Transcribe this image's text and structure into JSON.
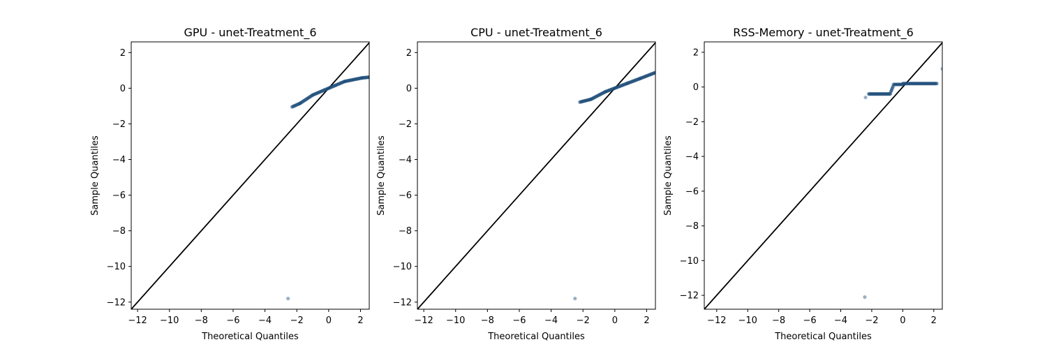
{
  "chart_data": [
    {
      "type": "scatter",
      "title": "GPU - unet-Treatment_6",
      "xlabel": "Theoretical Quantiles",
      "ylabel": "Sample Quantiles",
      "xlim": [
        -12.4,
        2.55
      ],
      "ylim": [
        -12.4,
        2.6
      ],
      "xticks": [
        -12,
        -10,
        -8,
        -6,
        -4,
        -2,
        0,
        2
      ],
      "yticks": [
        -12,
        -10,
        -8,
        -6,
        -4,
        -2,
        0,
        2
      ],
      "reference_line": "45-degree",
      "marker_color": "#1f4e79",
      "line_color": "#000000",
      "outliers": [
        [
          -2.55,
          -11.8
        ]
      ],
      "segments": [
        {
          "x_start": -2.3,
          "x_end": -1.8,
          "y_start": -1.05,
          "y_end": -0.85
        },
        {
          "x_start": -1.8,
          "x_end": -1.0,
          "y_start": -0.85,
          "y_end": -0.38
        },
        {
          "x_start": -1.0,
          "x_end": 1.0,
          "y_start": -0.38,
          "y_end": 0.38
        },
        {
          "x_start": 1.0,
          "x_end": 2.1,
          "y_start": 0.38,
          "y_end": 0.58
        },
        {
          "x_start": 2.1,
          "x_end": 2.55,
          "y_start": 0.58,
          "y_end": 0.62
        }
      ]
    },
    {
      "type": "scatter",
      "title": "CPU - unet-Treatment_6",
      "xlabel": "Theoretical Quantiles",
      "ylabel": "Sample Quantiles",
      "xlim": [
        -12.4,
        2.55
      ],
      "ylim": [
        -12.4,
        2.6
      ],
      "xticks": [
        -12,
        -10,
        -8,
        -6,
        -4,
        -2,
        0,
        2
      ],
      "yticks": [
        -12,
        -10,
        -8,
        -6,
        -4,
        -2,
        0,
        2
      ],
      "reference_line": "45-degree",
      "marker_color": "#1f4e79",
      "line_color": "#000000",
      "outliers": [
        [
          -2.5,
          -11.8
        ]
      ],
      "segments": [
        {
          "x_start": -2.2,
          "x_end": -1.5,
          "y_start": -0.78,
          "y_end": -0.62
        },
        {
          "x_start": -1.5,
          "x_end": -0.6,
          "y_start": -0.62,
          "y_end": -0.2
        },
        {
          "x_start": -0.6,
          "x_end": 0.8,
          "y_start": -0.2,
          "y_end": 0.28
        },
        {
          "x_start": 0.8,
          "x_end": 1.6,
          "y_start": 0.28,
          "y_end": 0.55
        },
        {
          "x_start": 1.6,
          "x_end": 2.55,
          "y_start": 0.55,
          "y_end": 0.88
        }
      ]
    },
    {
      "type": "scatter",
      "title": "RSS-Memory - unet-Treatment_6",
      "xlabel": "Theoretical Quantiles",
      "ylabel": "Sample Quantiles",
      "xlim": [
        -12.8,
        2.55
      ],
      "ylim": [
        -12.8,
        2.6
      ],
      "xticks": [
        -12,
        -10,
        -8,
        -6,
        -4,
        -2,
        0,
        2
      ],
      "yticks": [
        -12,
        -10,
        -8,
        -6,
        -4,
        -2,
        0,
        2
      ],
      "reference_line": "45-degree",
      "marker_color": "#1f4e79",
      "line_color": "#000000",
      "outliers": [
        [
          -2.45,
          -12.1
        ],
        [
          -2.4,
          -0.6
        ],
        [
          2.55,
          1.05
        ]
      ],
      "segments": [
        {
          "x_start": -2.2,
          "x_end": -0.8,
          "y_start": -0.4,
          "y_end": -0.4
        },
        {
          "x_start": -0.78,
          "x_end": -0.62,
          "y_start": -0.3,
          "y_end": 0.05
        },
        {
          "x_start": -0.6,
          "x_end": 0.0,
          "y_start": 0.15,
          "y_end": 0.15
        },
        {
          "x_start": 0.0,
          "x_end": 2.2,
          "y_start": 0.2,
          "y_end": 0.2
        }
      ]
    }
  ]
}
